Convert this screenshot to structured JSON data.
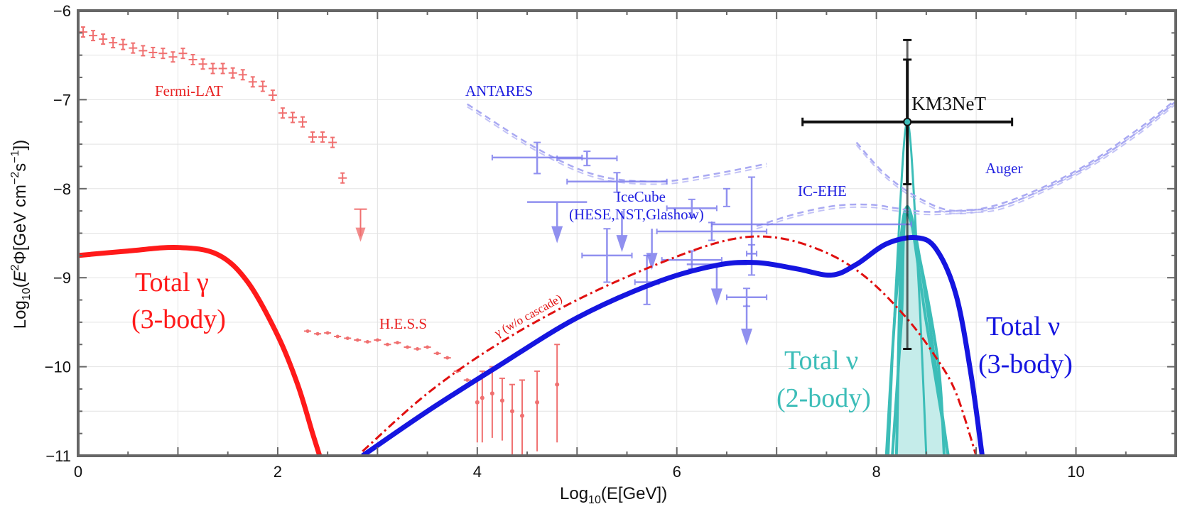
{
  "chart_data": {
    "type": "line",
    "xlabel": "Log10(E[GeV])",
    "ylabel": "Log10(E²Φ[GeV cm⁻²s⁻¹])",
    "xlim": [
      0,
      11
    ],
    "ylim": [
      -11,
      -6
    ],
    "grid": true,
    "xticks": [
      0,
      2,
      4,
      6,
      8,
      10
    ],
    "yticks": [
      -6,
      -7,
      -8,
      -9,
      -10,
      -11
    ],
    "colors": {
      "gamma": "#ff1a1a",
      "nu3": "#1515e0",
      "nu2": "#3cbdb8",
      "nu2_fill": "#c5ecea",
      "data_red": "#f07070",
      "data_blue": "#7d7ded",
      "limits_blue": "#a9a9f2",
      "km3net": "#111111"
    },
    "series": [
      {
        "name": "Total γ (3-body)",
        "style": "solid-thick",
        "color": "#ff1a1a",
        "x": [
          0,
          0.5,
          1,
          1.4,
          1.7,
          2.0,
          2.2,
          2.35,
          2.42
        ],
        "y": [
          -8.75,
          -8.7,
          -8.66,
          -8.74,
          -9.05,
          -9.65,
          -10.2,
          -10.75,
          -11.0
        ]
      },
      {
        "name": "γ (w/o cascade)",
        "style": "dash-dot",
        "color": "#e01010",
        "x": [
          2.85,
          3.5,
          4.2,
          5.0,
          5.8,
          6.5,
          7.0,
          7.5,
          7.9,
          8.3,
          8.6,
          8.8,
          9.0
        ],
        "y": [
          -10.95,
          -10.3,
          -9.75,
          -9.25,
          -8.85,
          -8.58,
          -8.55,
          -8.72,
          -9.0,
          -9.45,
          -9.9,
          -10.3,
          -11.0
        ]
      },
      {
        "name": "Total ν (3-body)",
        "style": "solid-thick",
        "color": "#1515e0",
        "x": [
          2.85,
          3.5,
          4.2,
          5.0,
          5.8,
          6.4,
          6.8,
          7.2,
          7.55,
          7.8,
          8.1,
          8.4,
          8.6,
          8.8,
          8.95,
          9.06
        ],
        "y": [
          -11.0,
          -10.5,
          -10.0,
          -9.45,
          -9.05,
          -8.86,
          -8.83,
          -8.9,
          -8.97,
          -8.85,
          -8.62,
          -8.55,
          -8.68,
          -9.2,
          -10.1,
          -11.0
        ]
      },
      {
        "name": "Total ν (2-body)",
        "style": "peak",
        "color": "#3cbdb8",
        "peaks": [
          {
            "x": [
              8.12,
              8.2,
              8.31,
              8.42,
              8.5
            ],
            "y": [
              -11.0,
              -9.0,
              -7.25,
              -9.0,
              -11.0
            ]
          },
          {
            "x": [
              8.1,
              8.2,
              8.31,
              8.5,
              8.72
            ],
            "y": [
              -11.0,
              -9.2,
              -8.22,
              -9.5,
              -11.0
            ]
          },
          {
            "x": [
              8.16,
              8.25,
              8.31,
              8.6,
              8.68
            ],
            "y": [
              -11.0,
              -9.5,
              -8.28,
              -9.8,
              -11.0
            ]
          },
          {
            "x": [
              8.2,
              8.31,
              8.72
            ],
            "y": [
              -11.0,
              -8.2,
              -11.0
            ]
          }
        ]
      },
      {
        "name": "ANTARES",
        "style": "dashed",
        "color": "#a9a9f2",
        "x": [
          3.9,
          4.6,
          5.2,
          5.8,
          6.3,
          6.9
        ],
        "y": [
          -7.05,
          -7.55,
          -7.85,
          -7.92,
          -7.85,
          -7.72
        ]
      },
      {
        "name": "IC-EHE",
        "style": "dashed",
        "color": "#a9a9f2",
        "x": [
          6.8,
          7.2,
          7.6,
          7.95,
          8.2,
          8.5,
          8.9,
          9.3,
          10.0,
          10.6,
          11.0
        ],
        "y": [
          -8.42,
          -8.28,
          -8.19,
          -8.18,
          -8.22,
          -8.26,
          -8.24,
          -8.18,
          -7.82,
          -7.38,
          -7.02
        ]
      },
      {
        "name": "Auger",
        "style": "dashed",
        "color": "#a9a9f2",
        "x": [
          7.8,
          8.1,
          8.45,
          8.8,
          9.3,
          10.0,
          10.6,
          11.0
        ],
        "y": [
          -7.48,
          -7.85,
          -8.12,
          -8.25,
          -8.15,
          -7.8,
          -7.35,
          -7.0
        ]
      }
    ],
    "fermi_lat": {
      "x": [
        0.05,
        0.15,
        0.25,
        0.35,
        0.45,
        0.55,
        0.65,
        0.75,
        0.85,
        0.95,
        1.05,
        1.15,
        1.25,
        1.35,
        1.45,
        1.55,
        1.65,
        1.75,
        1.85,
        1.95,
        2.05,
        2.15,
        2.25,
        2.35,
        2.45,
        2.55,
        2.65
      ],
      "y": [
        -6.24,
        -6.28,
        -6.32,
        -6.36,
        -6.38,
        -6.42,
        -6.45,
        -6.47,
        -6.48,
        -6.52,
        -6.48,
        -6.55,
        -6.6,
        -6.65,
        -6.65,
        -6.7,
        -6.72,
        -6.8,
        -6.85,
        -6.95,
        -7.15,
        -7.2,
        -7.25,
        -7.42,
        -7.42,
        -7.48,
        -7.88
      ]
    },
    "fermi_limit": {
      "x": 2.83,
      "y": -8.23
    },
    "hess": {
      "x": [
        2.3,
        2.4,
        2.5,
        2.6,
        2.7,
        2.8,
        2.9,
        3.0,
        3.1,
        3.2,
        3.3,
        3.4,
        3.5,
        3.6,
        3.7,
        3.8,
        3.9
      ],
      "y": [
        -9.6,
        -9.63,
        -9.62,
        -9.66,
        -9.68,
        -9.7,
        -9.72,
        -9.7,
        -9.75,
        -9.73,
        -9.78,
        -9.8,
        -9.78,
        -9.85,
        -9.9,
        -10.05,
        -10.15
      ],
      "high_x": [
        4.0,
        4.05,
        4.15,
        4.25,
        4.35,
        4.45,
        4.6,
        4.8
      ],
      "high_y": [
        -10.4,
        -10.35,
        -10.3,
        -10.38,
        -10.5,
        -10.55,
        -10.4,
        -10.2
      ],
      "high_err": [
        0.25,
        0.3,
        0.3,
        0.25,
        0.3,
        0.4,
        0.35,
        0.45
      ]
    },
    "icecube": {
      "points": [
        {
          "x": 4.6,
          "y": -7.65,
          "xerr": 0.45,
          "yup": 0.17,
          "ydn": 0.18
        },
        {
          "x": 5.1,
          "y": -7.66,
          "xerr": 0.3,
          "yup": 0.08,
          "ydn": 0.08
        },
        {
          "x": 5.4,
          "y": -7.92,
          "xerr": 0.5,
          "yup": 0.1,
          "ydn": 0.12
        },
        {
          "x": 6.5,
          "y": -8.1,
          "xerr": 0.0,
          "yup": 0.1,
          "ydn": 0.1
        },
        {
          "x": 6.15,
          "y": -8.22,
          "xerr": 0.25,
          "yup": 0.1,
          "ydn": 0.1
        },
        {
          "x": 6.35,
          "y": -8.48,
          "xerr": 0.55,
          "yup": 0.1,
          "ydn": 0.1
        },
        {
          "x": 6.75,
          "y": -8.42,
          "xerr": 0.0,
          "yup": 0.55,
          "ydn": 0.55
        },
        {
          "x": 7.35,
          "y": -8.4,
          "xerr": 1.0,
          "yup": 0.0,
          "ydn": 0.0
        },
        {
          "x": 6.75,
          "y": -8.73,
          "xerr": 0.05,
          "yup": 0.1,
          "ydn": 0.1
        },
        {
          "x": 5.3,
          "y": -8.75,
          "xerr": 0.25,
          "yup": 0.3,
          "ydn": 0.3
        },
        {
          "x": 6.15,
          "y": -8.8,
          "xerr": 0.3,
          "yup": 0.1,
          "ydn": 0.1
        },
        {
          "x": 5.7,
          "y": -9.05,
          "xerr": 0.12,
          "yup": 0.3,
          "ydn": 0.25
        },
        {
          "x": 6.7,
          "y": -9.22,
          "xerr": 0.2,
          "yup": 0.1,
          "ydn": 0.1
        }
      ],
      "limits": [
        {
          "x": 4.8,
          "y": -8.15,
          "xerr": 0.3
        },
        {
          "x": 5.45,
          "y": -8.25,
          "xerr": 0.0
        },
        {
          "x": 5.75,
          "y": -8.45,
          "xerr": 0.0
        },
        {
          "x": 6.4,
          "y": -8.85,
          "xerr": 0.3
        },
        {
          "x": 6.7,
          "y": -9.3,
          "xerr": 0.0
        }
      ]
    },
    "km3net": {
      "x": 8.31,
      "y": -7.25,
      "xerr": 1.05,
      "yup_inner": 0.7,
      "ydn_inner": 0.7,
      "yup_outer": 0.92,
      "ydn_outer": 2.55
    },
    "annotations": {
      "fermi": "Fermi-LAT",
      "antares": "ANTARES",
      "km3net": "KM3NeT",
      "auger": "Auger",
      "icehe": "IC-EHE",
      "icecube_1": "IceCube",
      "icecube_2": "(HESE,NST,Glashow)",
      "hess": "H.E.S.S",
      "gamma_nocascade": "γ (w/o cascade)",
      "total_gamma_1": "Total γ",
      "total_gamma_2": "(3-body)",
      "total_nu2_1": "Total ν",
      "total_nu2_2": "(2-body)",
      "total_nu3_1": "Total ν",
      "total_nu3_2": "(3-body)"
    }
  }
}
